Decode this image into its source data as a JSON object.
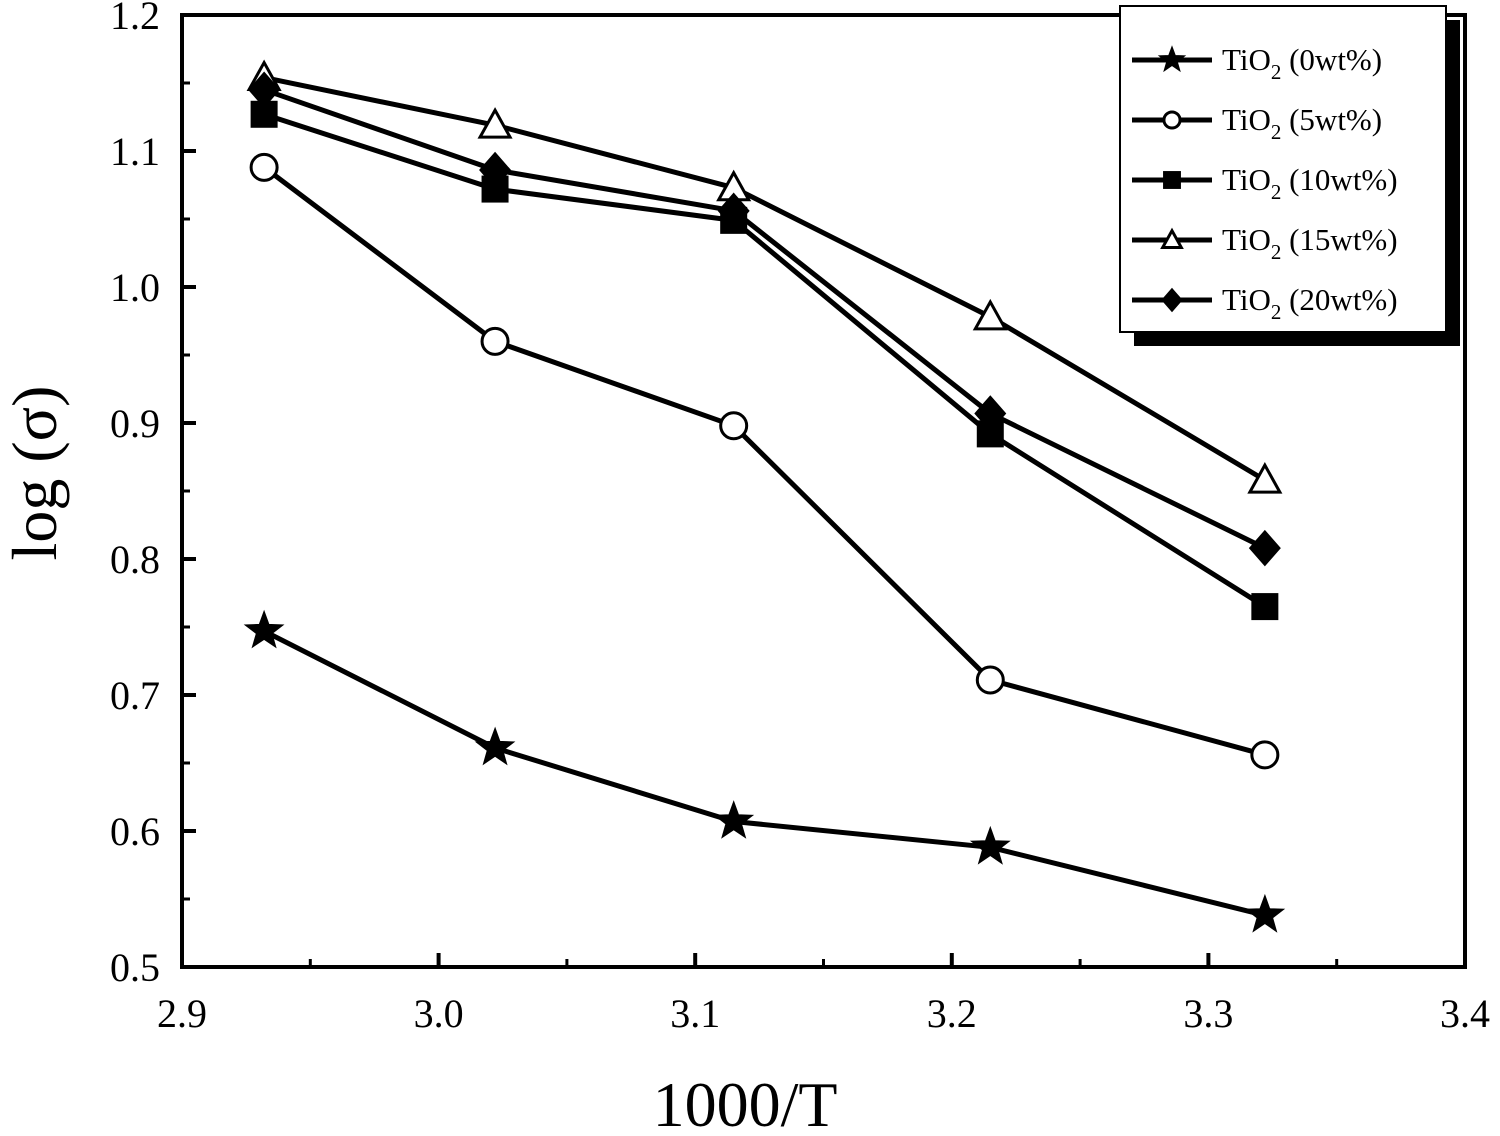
{
  "chart_data": {
    "type": "line",
    "title": "",
    "xlabel": "1000/T",
    "ylabel": "log (σ)",
    "xlim": [
      2.9,
      3.4
    ],
    "ylim": [
      0.5,
      1.2
    ],
    "xticks": [
      2.9,
      3.0,
      3.1,
      3.2,
      3.3,
      3.4
    ],
    "yticks": [
      0.5,
      0.6,
      0.7,
      0.8,
      0.9,
      1.0,
      1.1,
      1.2
    ],
    "x_tick_labels": [
      "2.9",
      "3.0",
      "3.1",
      "3.2",
      "3.3",
      "3.4"
    ],
    "y_tick_labels": [
      "0.5",
      "0.6",
      "0.7",
      "0.8",
      "0.9",
      "1.0",
      "1.1",
      "1.2"
    ],
    "grid": false,
    "legend_position": "top-right",
    "x": [
      2.932,
      3.022,
      3.115,
      3.215,
      3.322
    ],
    "series": [
      {
        "name": "TiO",
        "sub": "2",
        "suffix": " (0wt%)",
        "marker": "star",
        "fill": "#000000",
        "values": [
          0.747,
          0.661,
          0.607,
          0.588,
          0.538
        ]
      },
      {
        "name": "TiO",
        "sub": "2",
        "suffix": " (5wt%)",
        "marker": "circle",
        "fill": "#ffffff",
        "values": [
          1.088,
          0.96,
          0.898,
          0.711,
          0.656
        ]
      },
      {
        "name": "TiO",
        "sub": "2",
        "suffix": " (10wt%)",
        "marker": "square",
        "fill": "#000000",
        "values": [
          1.127,
          1.072,
          1.049,
          0.892,
          0.765
        ]
      },
      {
        "name": "TiO",
        "sub": "2",
        "suffix": " (15wt%)",
        "marker": "triangle",
        "fill": "#ffffff",
        "values": [
          1.154,
          1.119,
          1.073,
          0.978,
          0.858
        ]
      },
      {
        "name": "TiO",
        "sub": "2",
        "suffix": " (20wt%)",
        "marker": "diamond",
        "fill": "#000000",
        "values": [
          1.145,
          1.086,
          1.056,
          0.907,
          0.808
        ]
      }
    ]
  }
}
